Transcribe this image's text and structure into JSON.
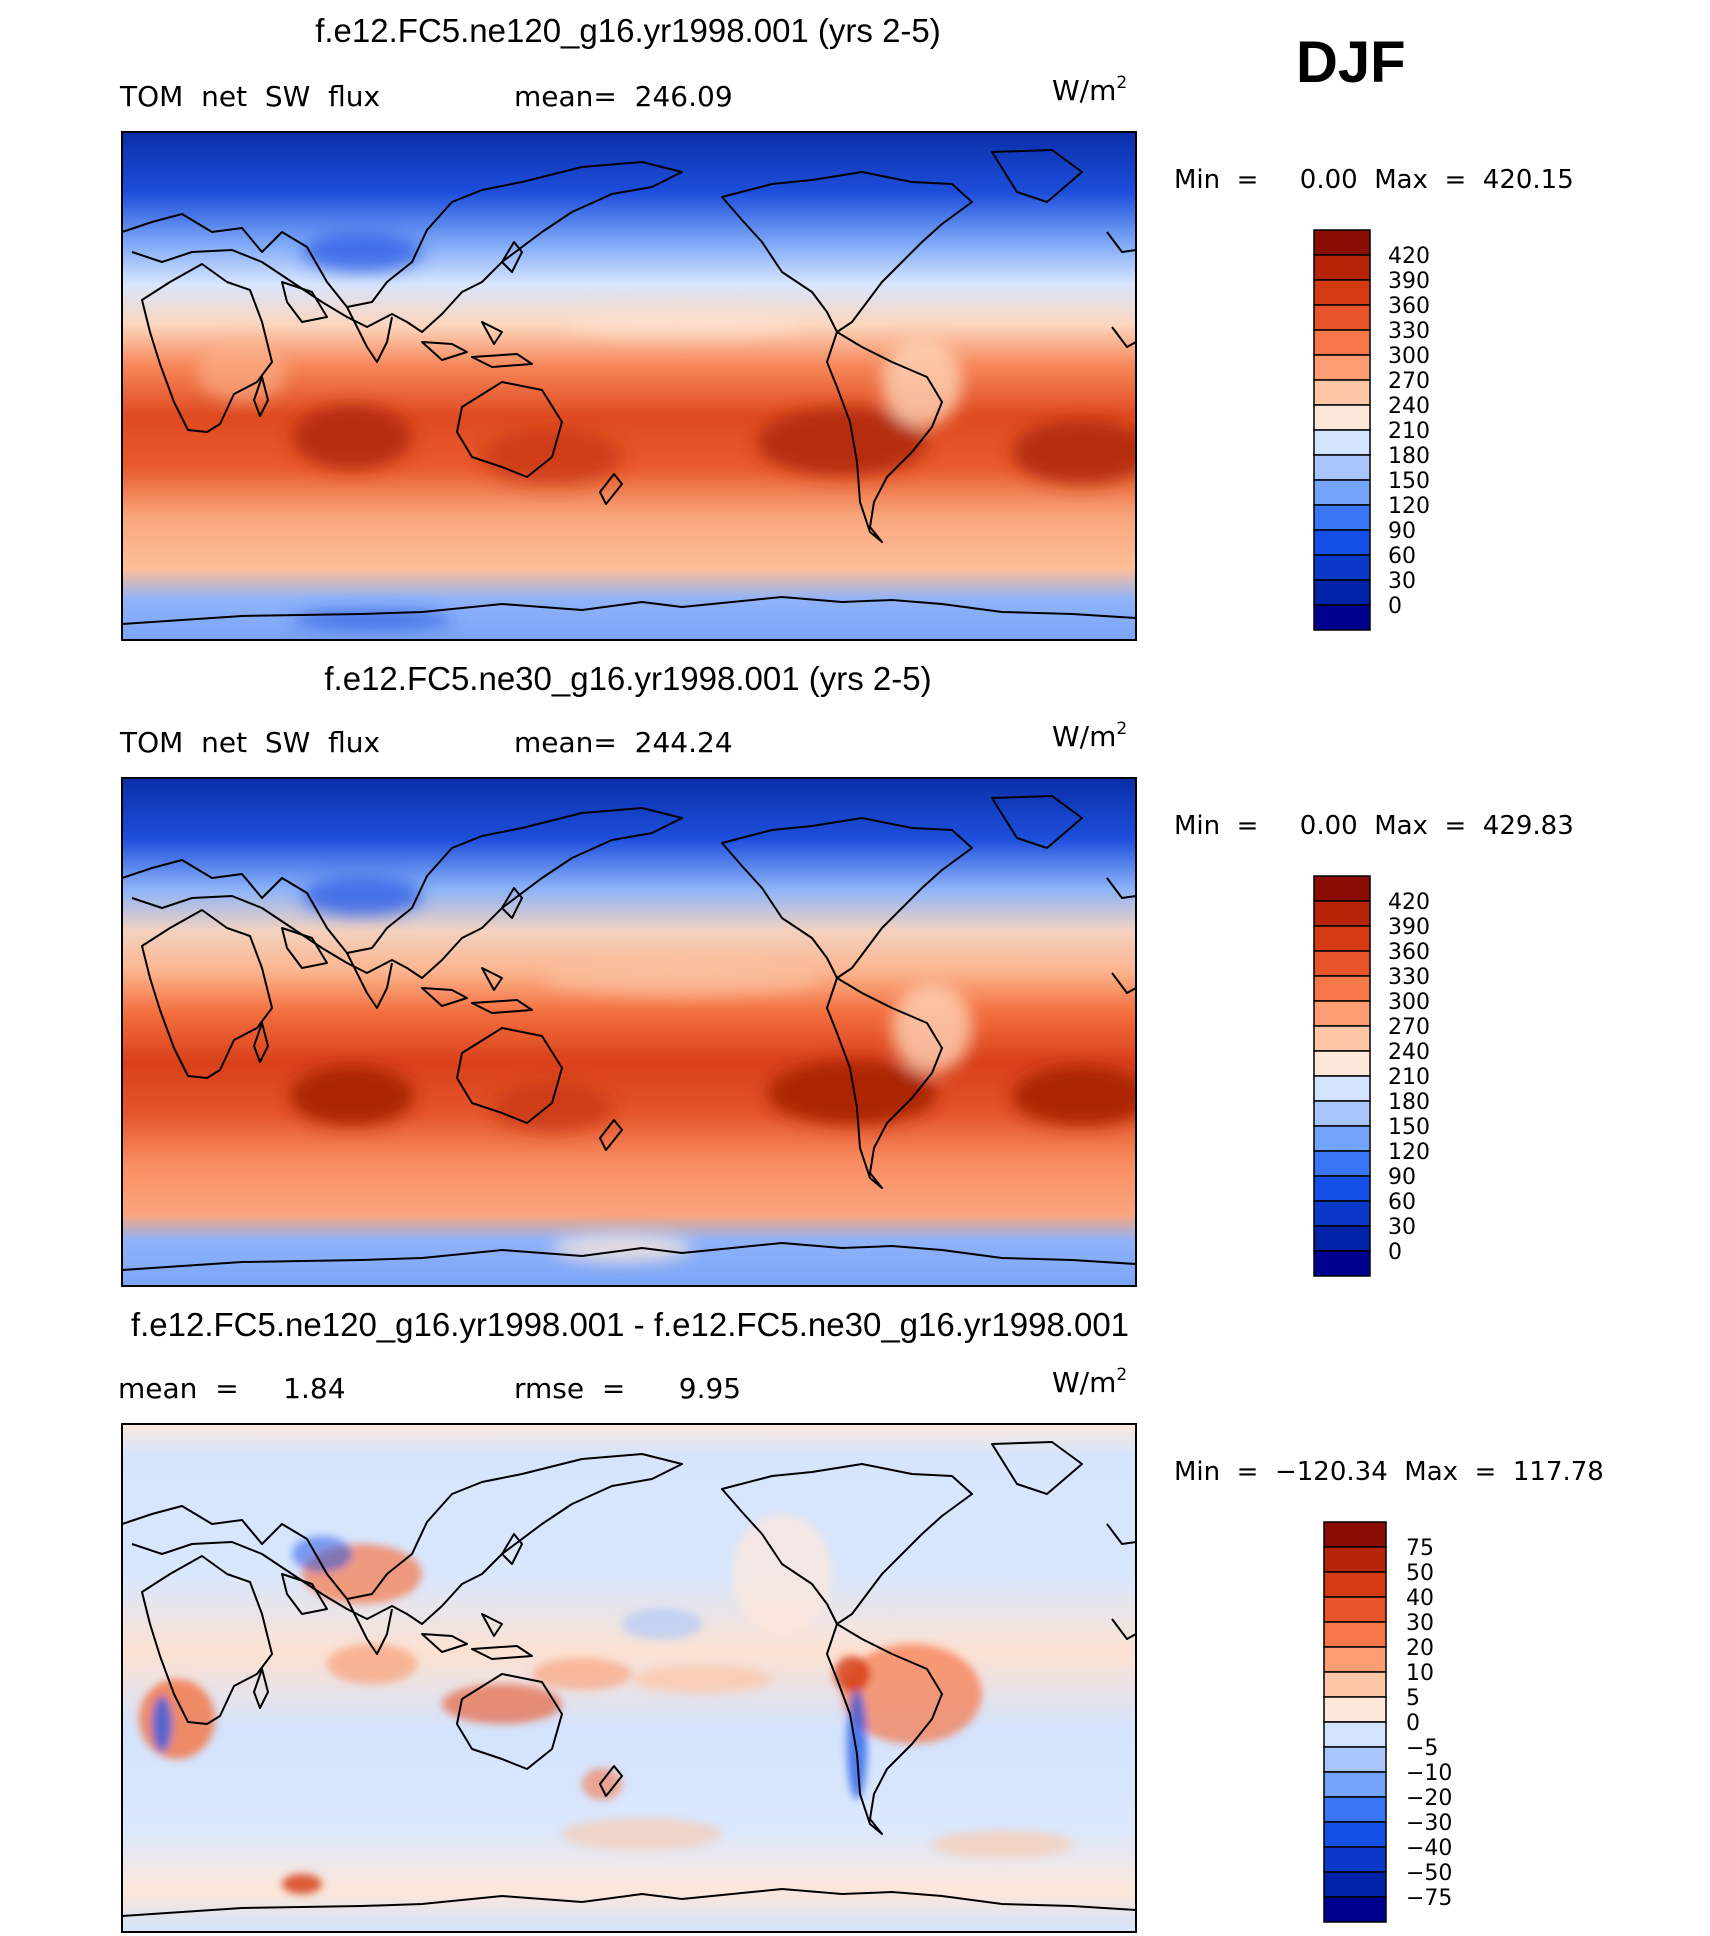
{
  "season": "DJF",
  "colors": {
    "abs_levels": [
      "#000090",
      "#0022a8",
      "#0a39c8",
      "#1550e6",
      "#3a75f5",
      "#74a3fa",
      "#a8c6fc",
      "#d2e3fd",
      "#fde7da",
      "#fcc6a7",
      "#fb9c72",
      "#f6774a",
      "#e8532a",
      "#d43a12",
      "#b82407",
      "#8a0d06"
    ],
    "diff_levels": [
      "#000090",
      "#0022a8",
      "#0a39c8",
      "#1550e6",
      "#3a75f5",
      "#74a3fa",
      "#a8c6fc",
      "#d2e3fd",
      "#fde7da",
      "#fcc6a7",
      "#fb9c72",
      "#f6774a",
      "#e8532a",
      "#d43a12",
      "#b82407",
      "#8a0d06"
    ],
    "coastline": "#000000"
  },
  "panels": [
    {
      "title": "f.e12.FC5.ne120_g16.yr1998.001 (yrs 2-5)",
      "left_label": "TOM  net  SW  flux",
      "center_label": "mean=  246.09",
      "units": "W/m",
      "units_sup": "2",
      "minmax": "Min  =     0.00  Max  =  420.15"
    },
    {
      "title": "f.e12.FC5.ne30_g16.yr1998.001 (yrs 2-5)",
      "left_label": "TOM  net  SW  flux",
      "center_label": "mean=  244.24",
      "units": "W/m",
      "units_sup": "2",
      "minmax": "Min  =     0.00  Max  =  429.83"
    },
    {
      "title": "f.e12.FC5.ne120_g16.yr1998.001 - f.e12.FC5.ne30_g16.yr1998.001",
      "left_label": "mean  =     1.84",
      "center_label": "rmse  =      9.95",
      "units": "W/m",
      "units_sup": "2",
      "minmax": "Min  =  −120.34  Max  =  117.78"
    }
  ],
  "chart_data": [
    {
      "type": "heatmap",
      "title": "f.e12.FC5.ne120_g16.yr1998.001 (yrs 2-5)",
      "variable": "TOM net SW flux",
      "units": "W/m2",
      "mean": 246.09,
      "min": 0.0,
      "max": 420.15,
      "colorbar_labels": [
        "420",
        "390",
        "360",
        "330",
        "300",
        "270",
        "240",
        "210",
        "180",
        "150",
        "120",
        "90",
        "60",
        "30",
        "0"
      ],
      "colorbar_levels": [
        0,
        30,
        60,
        90,
        120,
        150,
        180,
        210,
        240,
        270,
        300,
        330,
        360,
        390,
        420
      ]
    },
    {
      "type": "heatmap",
      "title": "f.e12.FC5.ne30_g16.yr1998.001 (yrs 2-5)",
      "variable": "TOM net SW flux",
      "units": "W/m2",
      "mean": 244.24,
      "min": 0.0,
      "max": 429.83,
      "colorbar_labels": [
        "420",
        "390",
        "360",
        "330",
        "300",
        "270",
        "240",
        "210",
        "180",
        "150",
        "120",
        "90",
        "60",
        "30",
        "0"
      ],
      "colorbar_levels": [
        0,
        30,
        60,
        90,
        120,
        150,
        180,
        210,
        240,
        270,
        300,
        330,
        360,
        390,
        420
      ]
    },
    {
      "type": "heatmap",
      "title": "f.e12.FC5.ne120_g16.yr1998.001 - f.e12.FC5.ne30_g16.yr1998.001",
      "units": "W/m2",
      "mean": 1.84,
      "rmse": 9.95,
      "min": -120.34,
      "max": 117.78,
      "colorbar_labels": [
        "75",
        "50",
        "40",
        "30",
        "20",
        "10",
        "5",
        "0",
        "−5",
        "−10",
        "−20",
        "−30",
        "−40",
        "−50",
        "−75"
      ],
      "colorbar_levels": [
        -75,
        -50,
        -40,
        -30,
        -20,
        -10,
        -5,
        0,
        5,
        10,
        20,
        30,
        40,
        50,
        75
      ]
    }
  ]
}
